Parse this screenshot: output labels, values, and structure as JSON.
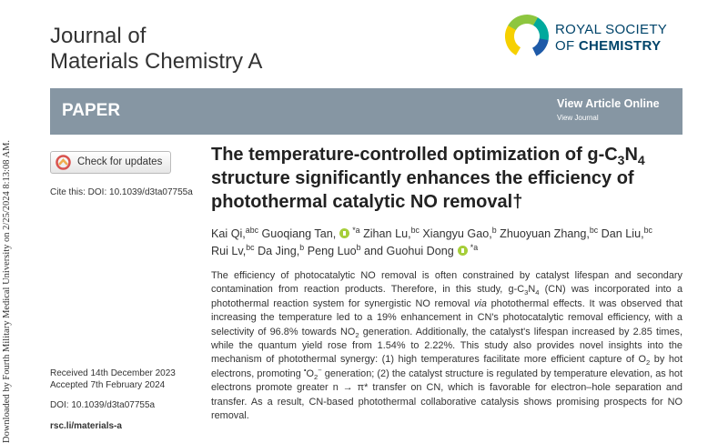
{
  "side_note": "Downloaded by Fourth Military Medical University on 2/25/2024 8:13:08 AM.",
  "journal": {
    "line1": "Journal of",
    "line2": "Materials Chemistry A"
  },
  "logo": {
    "line1": "ROYAL SOCIETY",
    "of": "OF",
    "chemistry": "CHEMISTRY"
  },
  "banner": {
    "label": "PAPER",
    "view_article": "View Article Online",
    "view_journal": "View Journal"
  },
  "check_updates": "Check for updates",
  "cite": "Cite this: DOI: 10.1039/d3ta07755a",
  "title": [
    {
      "text": "The temperature-controlled optimization of g-C"
    },
    {
      "sub": "3"
    },
    {
      "text": "N"
    },
    {
      "sub": "4"
    },
    {
      "text": " structure significantly enhances the efficiency of photothermal catalytic NO removal†"
    }
  ],
  "authors": [
    {
      "name": "Kai Qi,",
      "sup": "abc"
    },
    {
      "name": "Guoqiang Tan,",
      "orcid": true,
      "sup": "*a"
    },
    {
      "name": "Zihan Lu,",
      "sup": "bc"
    },
    {
      "name": "Xiangyu Gao,",
      "sup": "b"
    },
    {
      "name": "Zhuoyuan Zhang,",
      "sup": "bc"
    },
    {
      "name": "Dan Liu,",
      "sup": "bc"
    },
    {
      "name": "Rui Lv,",
      "sup": "bc"
    },
    {
      "name": "Da Jing,",
      "sup": "b"
    },
    {
      "name": "Peng Luo",
      "sup": "b"
    },
    {
      "name": "and Guohui Dong",
      "orcid": true,
      "sup": "*a"
    }
  ],
  "abstract": [
    {
      "text": "The efficiency of photocatalytic NO removal is often constrained by catalyst lifespan and secondary contamination from reaction products. Therefore, in this study, g-C"
    },
    {
      "sub": "3"
    },
    {
      "text": "N"
    },
    {
      "sub": "4"
    },
    {
      "text": " (CN) was incorporated into a photothermal reaction system for synergistic NO removal "
    },
    {
      "em": "via"
    },
    {
      "text": " photothermal effects. It was observed that increasing the temperature led to a 19% enhancement in CN's photocatalytic removal efficiency, with a selectivity of 96.8% towards NO"
    },
    {
      "sub": "2"
    },
    {
      "text": " generation. Additionally, the catalyst's lifespan increased by 2.85 times, while the quantum yield rose from 1.54% to 2.22%. This study also provides novel insights into the mechanism of photothermal synergy: (1) high temperatures facilitate more efficient capture of O"
    },
    {
      "sub": "2"
    },
    {
      "text": " by hot electrons, promoting "
    },
    {
      "sup": "•"
    },
    {
      "text": "O"
    },
    {
      "sub": "2"
    },
    {
      "sup": "−"
    },
    {
      "text": " generation; (2) the catalyst structure is regulated by temperature elevation, as hot electrons promote greater n → π* transfer on CN, which is favorable for electron–hole separation and transfer. As a result, CN-based photothermal collaborative catalysis shows promising prospects for NO removal."
    }
  ],
  "dates": {
    "received": "Received 14th December 2023",
    "accepted": "Accepted 7th February 2024"
  },
  "doi": "DOI: 10.1039/d3ta07755a",
  "url": "rsc.li/materials-a"
}
